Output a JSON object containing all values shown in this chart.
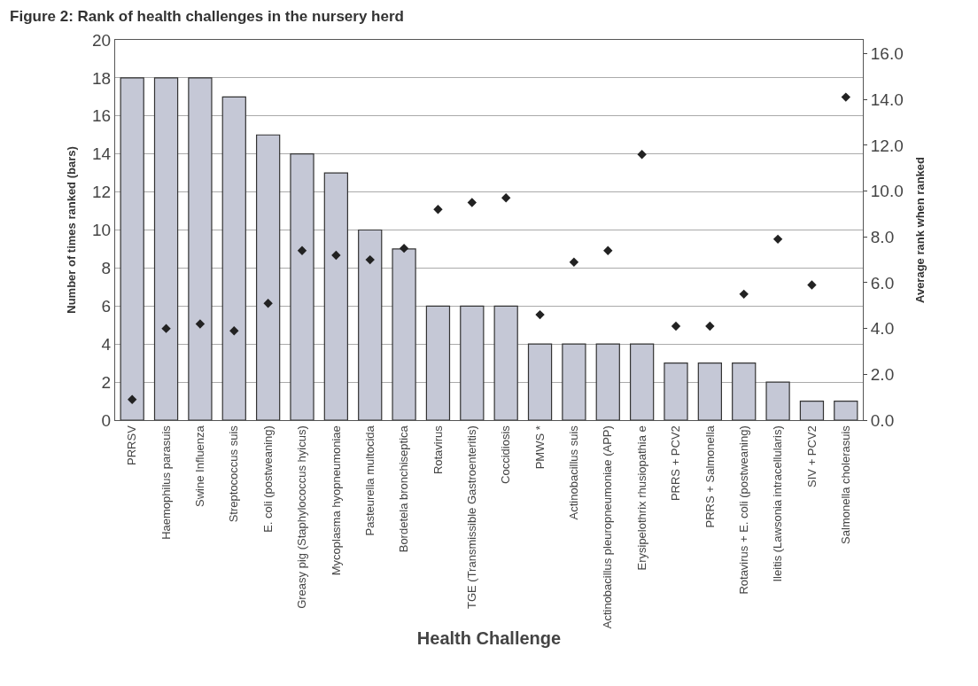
{
  "chart_data": {
    "type": "bar",
    "title": "Figure 2: Rank of health challenges in the nursery herd",
    "xlabel": "Health Challenge",
    "ylabel": "Number of times ranked (bars)",
    "y2label": "Average rank when ranked",
    "categories": [
      "PRRSV",
      "Haemophilus parasuis",
      "Swine Influenza",
      "Streptococcus suis",
      "E. coli (postweaning)",
      "Greasy pig (Staphylococcus hyicus)",
      "Mycoplasma hyopneumoniae",
      "Pasteurella multocida",
      "Bordetela bronchiseptica",
      "Rotavirus",
      "TGE (Transmissible Gastroenteritis)",
      "Coccidiosis",
      "PMWS *",
      "Actinobacillus suis",
      "Actinobacillus pleuropneumoniae (APP)",
      "Erysipelothrix rhusiopathia e",
      "PRRS + PCV2",
      "PRRS + Salmonella",
      "Rotavirus + E. coli (postweaning)",
      "Ileitis (Lawsonia intracellularis)",
      "SIV + PCV2",
      "Salmonella cholerasuis"
    ],
    "series": [
      {
        "color": "#c5c8d6",
        "values": [
          18,
          18,
          18,
          17,
          15,
          14,
          13,
          10,
          9,
          6,
          6,
          6,
          4,
          4,
          4,
          4,
          3,
          3,
          3,
          2,
          1,
          1
        ]
      },
      {
        "type": "scatter",
        "axis": "y2",
        "color": "#222222",
        "values": [
          0.9,
          4.0,
          4.2,
          3.9,
          5.1,
          7.4,
          7.2,
          7.0,
          7.5,
          9.2,
          9.5,
          9.7,
          4.6,
          6.9,
          7.4,
          11.6,
          4.1,
          4.1,
          5.5,
          7.9,
          5.9,
          14.1
        ]
      }
    ],
    "marker": "diamond",
    "ylim": [
      0,
      20
    ],
    "yticks": [
      0,
      2,
      4,
      6,
      8,
      10,
      12,
      14,
      16,
      18,
      20
    ],
    "y2lim": [
      0,
      16.6
    ],
    "y2ticks": [
      {
        "value": 0,
        "label": "0.0"
      },
      {
        "value": 2,
        "label": "2.0"
      },
      {
        "value": 4,
        "label": "4.0"
      },
      {
        "value": 6,
        "label": "6.0"
      },
      {
        "value": 8,
        "label": "8.0"
      },
      {
        "value": 10,
        "label": "10.0"
      },
      {
        "value": 12,
        "label": "12.0"
      },
      {
        "value": 14,
        "label": "14.0"
      },
      {
        "value": 16,
        "label": "16.0"
      }
    ],
    "grid": "y"
  }
}
